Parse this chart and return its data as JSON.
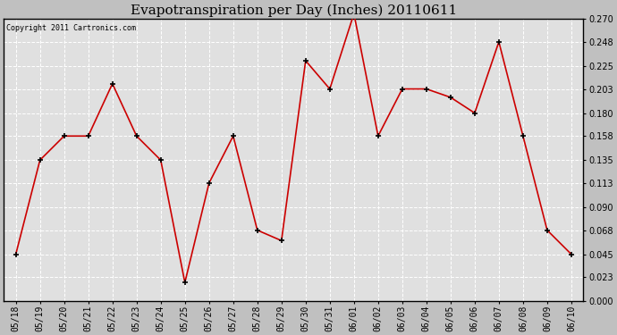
{
  "title": "Evapotranspiration per Day (Inches) 20110611",
  "copyright": "Copyright 2011 Cartronics.com",
  "dates": [
    "05/18",
    "05/19",
    "05/20",
    "05/21",
    "05/22",
    "05/23",
    "05/24",
    "05/25",
    "05/26",
    "05/27",
    "05/28",
    "05/29",
    "05/30",
    "05/31",
    "06/01",
    "06/02",
    "06/03",
    "06/04",
    "06/05",
    "06/06",
    "06/07",
    "06/08",
    "06/09",
    "06/10"
  ],
  "values": [
    0.045,
    0.135,
    0.158,
    0.158,
    0.208,
    0.158,
    0.135,
    0.018,
    0.113,
    0.158,
    0.068,
    0.058,
    0.23,
    0.203,
    0.275,
    0.158,
    0.203,
    0.203,
    0.195,
    0.18,
    0.248,
    0.158,
    0.068,
    0.045
  ],
  "line_color": "#cc0000",
  "bg_color": "#e0e0e0",
  "outer_bg": "#c0c0c0",
  "grid_color": "#ffffff",
  "ylim": [
    0.0,
    0.27
  ],
  "yticks": [
    0.0,
    0.023,
    0.045,
    0.068,
    0.09,
    0.113,
    0.135,
    0.158,
    0.18,
    0.203,
    0.225,
    0.248,
    0.27
  ],
  "title_fontsize": 11,
  "copyright_fontsize": 6,
  "tick_fontsize": 7
}
